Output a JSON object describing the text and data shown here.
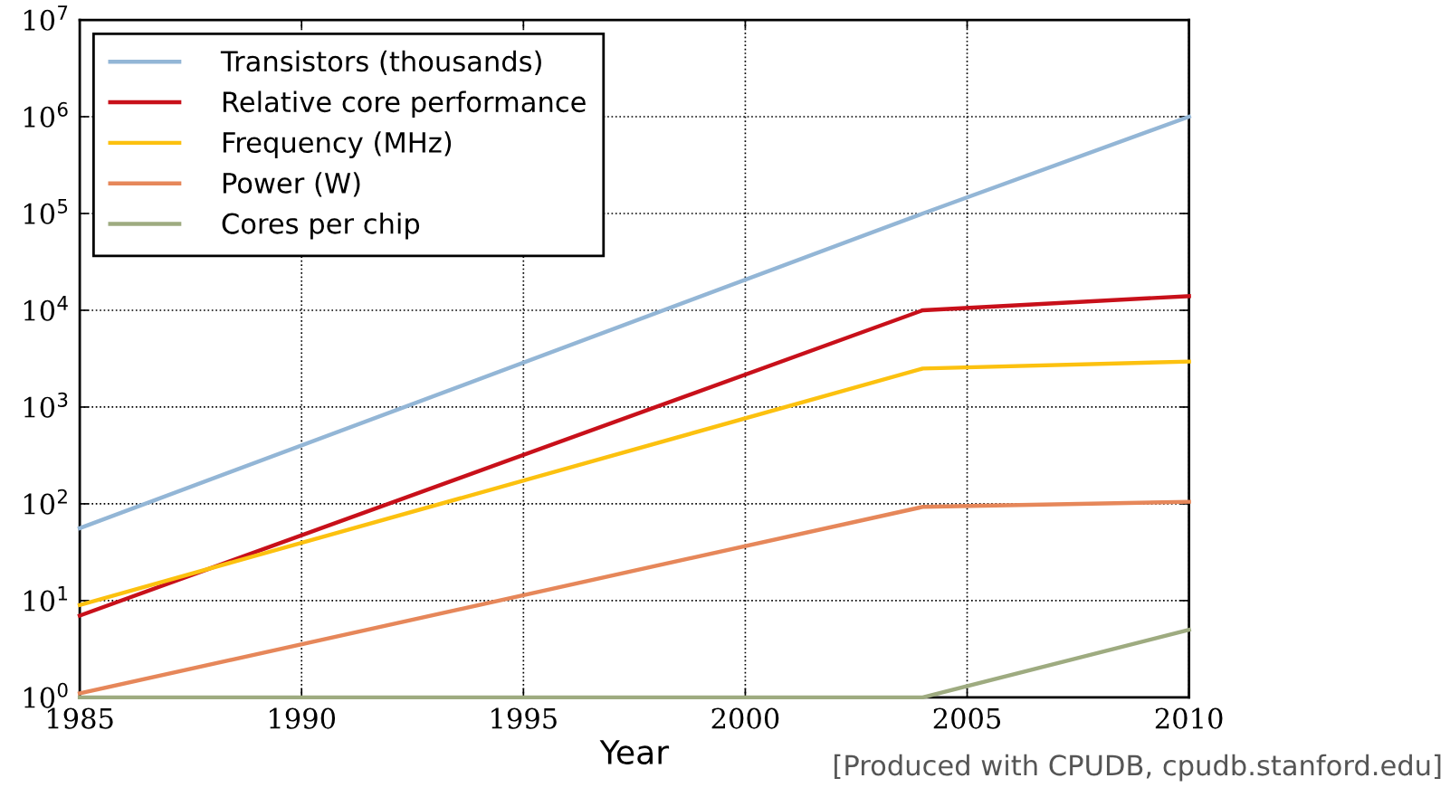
{
  "chart_data": {
    "type": "line",
    "xlabel": "Year",
    "x": [
      1985,
      2004,
      2010
    ],
    "series": [
      {
        "name": "Transistors (thousands)",
        "color": "#93b6d6",
        "values": [
          56,
          100000,
          1000000
        ]
      },
      {
        "name": "Relative core performance",
        "color": "#c8101a",
        "values": [
          7,
          10000,
          14000
        ]
      },
      {
        "name": "Frequency (MHz)",
        "color": "#fcc10f",
        "values": [
          9,
          2500,
          2950
        ]
      },
      {
        "name": "Power (W)",
        "color": "#e6875a",
        "values": [
          1.1,
          93,
          105
        ]
      },
      {
        "name": "Cores per chip",
        "color": "#9eab80",
        "values": [
          1,
          1,
          5
        ]
      }
    ],
    "log": "y",
    "xlim": [
      1985,
      2010
    ],
    "xticks": [
      1985,
      1990,
      1995,
      2000,
      2005,
      2010
    ],
    "ylim": [
      1,
      10000000
    ],
    "yticks": [
      {
        "value": 1,
        "label": "10$^{0}$"
      },
      {
        "value": 10,
        "label": "10$^{1}$"
      },
      {
        "value": 100,
        "label": "10$^{2}$"
      },
      {
        "value": 1000,
        "label": "10$^{3}$"
      },
      {
        "value": 10000,
        "label": "10$^{4}$"
      },
      {
        "value": 100000,
        "label": "10$^{5}$"
      },
      {
        "value": 1000000,
        "label": "10$^{6}$"
      },
      {
        "value": 10000000,
        "label": "10$^{7}$"
      }
    ],
    "grid": true,
    "legend": "top left",
    "marker": "none",
    "line_style": "solid",
    "annotations": [
      "[Produced with CPUDB, cpudb.stanford.edu]"
    ]
  }
}
